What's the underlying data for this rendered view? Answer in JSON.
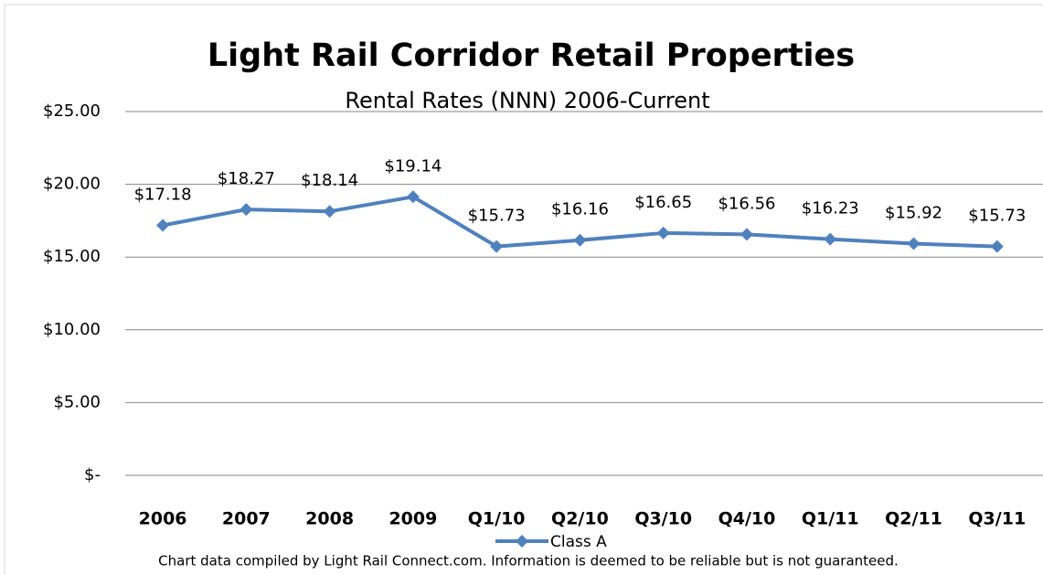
{
  "chart_data": {
    "type": "line",
    "title": "Light Rail Corridor Retail Properties",
    "subtitle": "Rental Rates (NNN)   2006-Current",
    "note": "Chart data compiled by Light Rail Connect.com. Information is deemed to be reliable but is not guaranteed.",
    "categories": [
      "2006",
      "2007",
      "2008",
      "2009",
      "Q1/10",
      "Q2/10",
      "Q3/10",
      "Q4/10",
      "Q1/11",
      "Q2/11",
      "Q3/11"
    ],
    "series": [
      {
        "name": "Class A",
        "color": "#4f81bd",
        "values": [
          17.18,
          18.27,
          18.14,
          19.14,
          15.73,
          16.16,
          16.65,
          16.56,
          16.23,
          15.92,
          15.73
        ],
        "value_labels": [
          "$17.18",
          "$18.27",
          "$18.14",
          "$19.14",
          "$15.73",
          "$16.16",
          "$16.65",
          "$16.56",
          "$16.23",
          "$15.92",
          "$15.73"
        ]
      }
    ],
    "ylim": [
      0,
      25
    ],
    "yticks": [
      {
        "value": 0,
        "label": "$-"
      },
      {
        "value": 5,
        "label": "$5.00"
      },
      {
        "value": 10,
        "label": "$10.00"
      },
      {
        "value": 15,
        "label": "$15.00"
      },
      {
        "value": 20,
        "label": "$20.00"
      },
      {
        "value": 25,
        "label": "$25.00"
      }
    ],
    "grid": true,
    "legend": "bottom"
  }
}
